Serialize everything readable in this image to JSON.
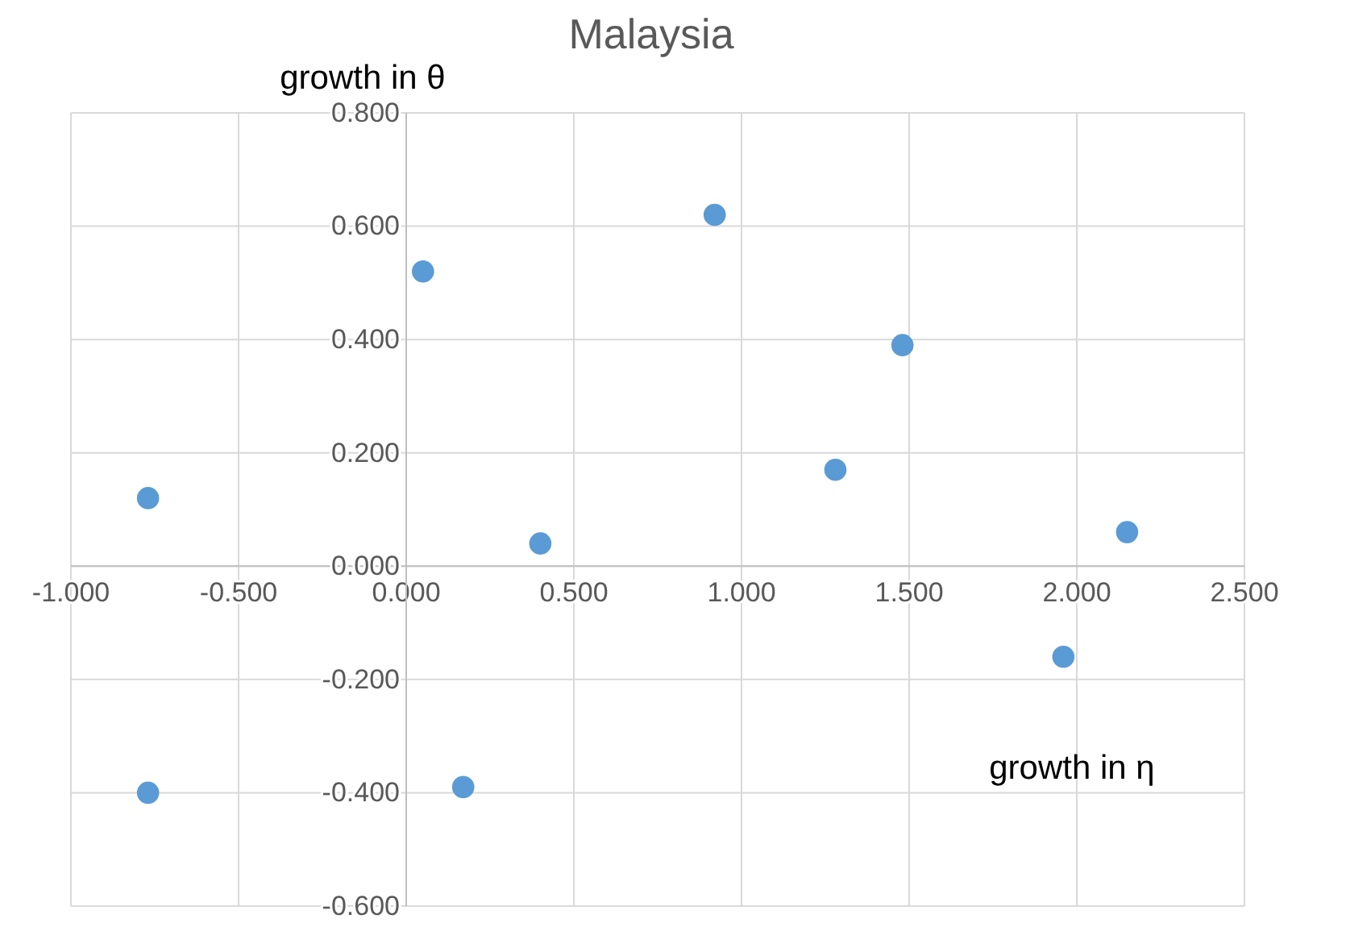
{
  "chart_data": {
    "type": "scatter",
    "title": "Malaysia",
    "xlabel": "growth in η",
    "ylabel": "growth in θ",
    "x": [
      -0.77,
      -0.77,
      0.05,
      0.17,
      0.4,
      0.92,
      1.28,
      1.48,
      1.96,
      2.15
    ],
    "series": [
      {
        "color": "#5b9bd5",
        "values": [
          0.12,
          -0.4,
          0.52,
          -0.39,
          0.04,
          0.62,
          0.17,
          0.39,
          -0.16,
          0.06
        ]
      }
    ],
    "xlim": [
      -1,
      2.5
    ],
    "xticks": [
      {
        "value": -1,
        "label": "-1.000"
      },
      {
        "value": -0.5,
        "label": "-0.500"
      },
      {
        "value": 0,
        "label": "0.000"
      },
      {
        "value": 0.5,
        "label": "0.500"
      },
      {
        "value": 1,
        "label": "1.000"
      },
      {
        "value": 1.5,
        "label": "1.500"
      },
      {
        "value": 2,
        "label": "2.000"
      },
      {
        "value": 2.5,
        "label": "2.500"
      }
    ],
    "ylim": [
      -0.6,
      0.8
    ],
    "yticks": [
      {
        "value": -0.6,
        "label": "-0.600"
      },
      {
        "value": -0.4,
        "label": "-0.400"
      },
      {
        "value": -0.2,
        "label": "-0.200"
      },
      {
        "value": 0,
        "label": "0.000"
      },
      {
        "value": 0.2,
        "label": "0.200"
      },
      {
        "value": 0.4,
        "label": "0.400"
      },
      {
        "value": 0.6,
        "label": "0.600"
      },
      {
        "value": 0.8,
        "label": "0.800"
      }
    ],
    "grid": true,
    "marker": "circle"
  }
}
